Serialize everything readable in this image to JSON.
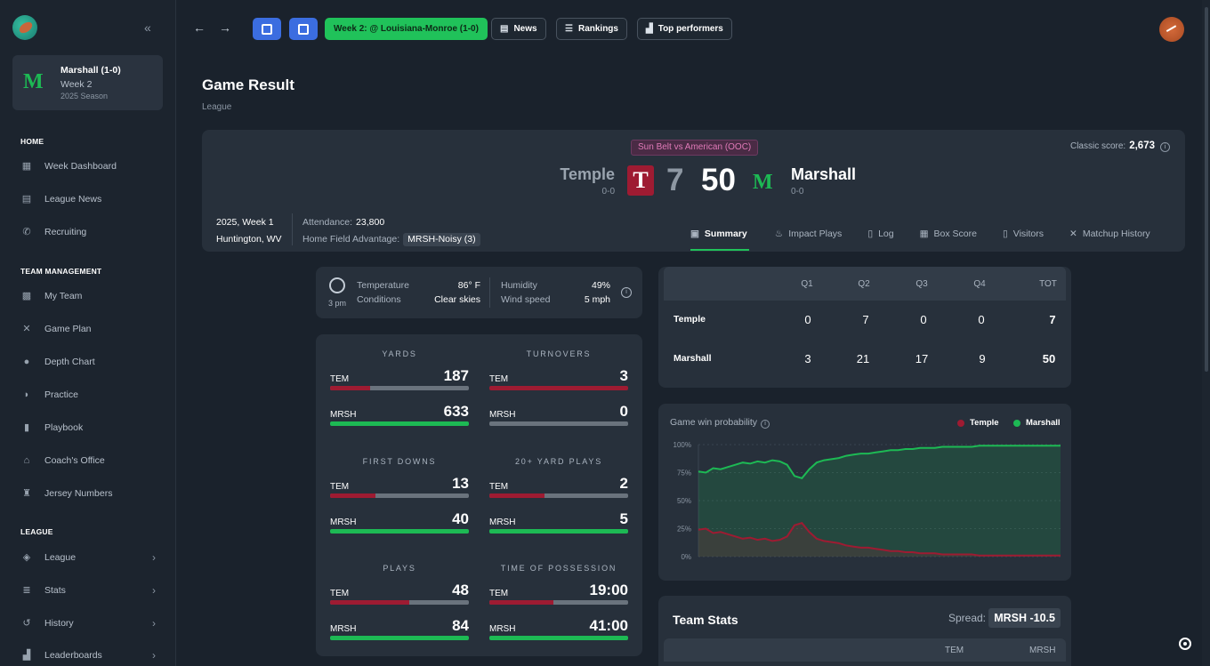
{
  "sidebar": {
    "team": {
      "name": "Marshall (1-0)",
      "week": "Week 2",
      "season": "2025 Season"
    },
    "sections": [
      {
        "title": "HOME",
        "items": [
          {
            "label": "Week Dashboard",
            "icon": "dashboard-icon"
          },
          {
            "label": "League News",
            "icon": "news-icon"
          },
          {
            "label": "Recruiting",
            "icon": "phone-icon"
          }
        ]
      },
      {
        "title": "TEAM MANAGEMENT",
        "items": [
          {
            "label": "My Team",
            "icon": "team-icon"
          },
          {
            "label": "Game Plan",
            "icon": "gameplan-icon"
          },
          {
            "label": "Depth Chart",
            "icon": "depth-chart-icon"
          },
          {
            "label": "Practice",
            "icon": "whistle-icon"
          },
          {
            "label": "Playbook",
            "icon": "playbook-icon"
          },
          {
            "label": "Coach's Office",
            "icon": "office-icon"
          },
          {
            "label": "Jersey Numbers",
            "icon": "jersey-icon"
          }
        ]
      },
      {
        "title": "LEAGUE",
        "items": [
          {
            "label": "League",
            "icon": "layers-icon"
          },
          {
            "label": "Stats",
            "icon": "database-icon"
          },
          {
            "label": "History",
            "icon": "history-icon"
          },
          {
            "label": "Leaderboards",
            "icon": "leaderboard-icon"
          }
        ]
      }
    ]
  },
  "topbar": {
    "week_button": "Week 2: @ Louisiana-Monroe (1-0)",
    "news": "News",
    "rankings": "Rankings",
    "top_performers": "Top performers"
  },
  "page": {
    "title": "Game Result",
    "subtitle": "League"
  },
  "game": {
    "conference_badge": "Sun Belt vs American (OOC)",
    "classic_label": "Classic score:",
    "classic_value": "2,673",
    "away": {
      "name": "Temple",
      "record": "0-0",
      "score": "7",
      "logo_letter": "T"
    },
    "home": {
      "name": "Marshall",
      "record": "0-0",
      "score": "50"
    },
    "date": "2025, Week 1",
    "location": "Huntington, WV",
    "attendance_label": "Attendance:",
    "attendance": "23,800",
    "hfa_label": "Home Field Advantage:",
    "hfa": "MRSH-Noisy (3)",
    "tabs": [
      "Summary",
      "Impact Plays",
      "Log",
      "Box Score",
      "Visitors",
      "Matchup History"
    ]
  },
  "weather": {
    "time": "3 pm",
    "temp_label": "Temperature",
    "temp_value": "86° F",
    "cond_label": "Conditions",
    "cond_value": "Clear skies",
    "hum_label": "Humidity",
    "hum_value": "49%",
    "wind_label": "Wind speed",
    "wind_value": "5 mph"
  },
  "team_compare": [
    {
      "title": "YARDS",
      "away_abbr": "TEM",
      "away": "187",
      "home_abbr": "MRSH",
      "home": "633",
      "away_frac": 0.29,
      "home_frac": 1.0
    },
    {
      "title": "TURNOVERS",
      "away_abbr": "TEM",
      "away": "3",
      "home_abbr": "MRSH",
      "home": "0",
      "away_frac": 1.0,
      "home_frac": 0.0
    },
    {
      "title": "FIRST DOWNS",
      "away_abbr": "TEM",
      "away": "13",
      "home_abbr": "MRSH",
      "home": "40",
      "away_frac": 0.33,
      "home_frac": 1.0
    },
    {
      "title": "20+ YARD PLAYS",
      "away_abbr": "TEM",
      "away": "2",
      "home_abbr": "MRSH",
      "home": "5",
      "away_frac": 0.4,
      "home_frac": 1.0
    },
    {
      "title": "PLAYS",
      "away_abbr": "TEM",
      "away": "48",
      "home_abbr": "MRSH",
      "home": "84",
      "away_frac": 0.57,
      "home_frac": 1.0
    },
    {
      "title": "TIME OF POSSESSION",
      "away_abbr": "TEM",
      "away": "19:00",
      "home_abbr": "MRSH",
      "home": "41:00",
      "away_frac": 0.46,
      "home_frac": 1.0
    }
  ],
  "linescore": {
    "headers": [
      "Q1",
      "Q2",
      "Q3",
      "Q4",
      "TOT"
    ],
    "rows": [
      {
        "team": "Temple",
        "values": [
          "0",
          "7",
          "0",
          "0",
          "7"
        ]
      },
      {
        "team": "Marshall",
        "values": [
          "3",
          "21",
          "17",
          "9",
          "50"
        ]
      }
    ]
  },
  "win_prob": {
    "title": "Game win probability",
    "legend": [
      {
        "name": "Temple",
        "color": "#9e1b32"
      },
      {
        "name": "Marshall",
        "color": "#1db954"
      }
    ],
    "y_ticks": [
      "100%",
      "75%",
      "50%",
      "25%",
      "0%"
    ]
  },
  "chart_data": {
    "type": "area",
    "title": "Game win probability",
    "ylim": [
      0,
      100
    ],
    "yticks": [
      "100%",
      "75%",
      "50%",
      "25%",
      "0%"
    ],
    "series": [
      {
        "name": "Marshall",
        "color": "#1db954",
        "values": [
          76,
          75,
          79,
          78,
          80,
          82,
          84,
          83,
          85,
          84,
          86,
          85,
          82,
          72,
          70,
          78,
          84,
          86,
          87,
          88,
          90,
          91,
          92,
          92,
          93,
          94,
          95,
          95,
          96,
          96,
          97,
          97,
          97,
          98,
          98,
          98,
          98,
          98,
          99,
          99,
          99,
          99,
          99,
          99,
          99,
          99,
          99,
          99,
          99,
          99
        ]
      },
      {
        "name": "Temple",
        "color": "#9e1b32",
        "values": [
          24,
          25,
          21,
          22,
          20,
          18,
          16,
          17,
          15,
          16,
          14,
          15,
          18,
          28,
          30,
          22,
          16,
          14,
          13,
          12,
          10,
          9,
          8,
          8,
          7,
          6,
          5,
          5,
          4,
          4,
          3,
          3,
          3,
          2,
          2,
          2,
          2,
          2,
          1,
          1,
          1,
          1,
          1,
          1,
          1,
          1,
          1,
          1,
          1,
          1
        ]
      }
    ]
  },
  "team_stats": {
    "title": "Team Stats",
    "spread_label": "Spread:",
    "spread": "MRSH -10.5",
    "col_away": "TEM",
    "col_home": "MRSH"
  },
  "colors": {
    "accent_green": "#20c25a",
    "temple_red": "#9e1b32",
    "marshall_green": "#1db954",
    "primary_blue": "#3b6de0"
  }
}
